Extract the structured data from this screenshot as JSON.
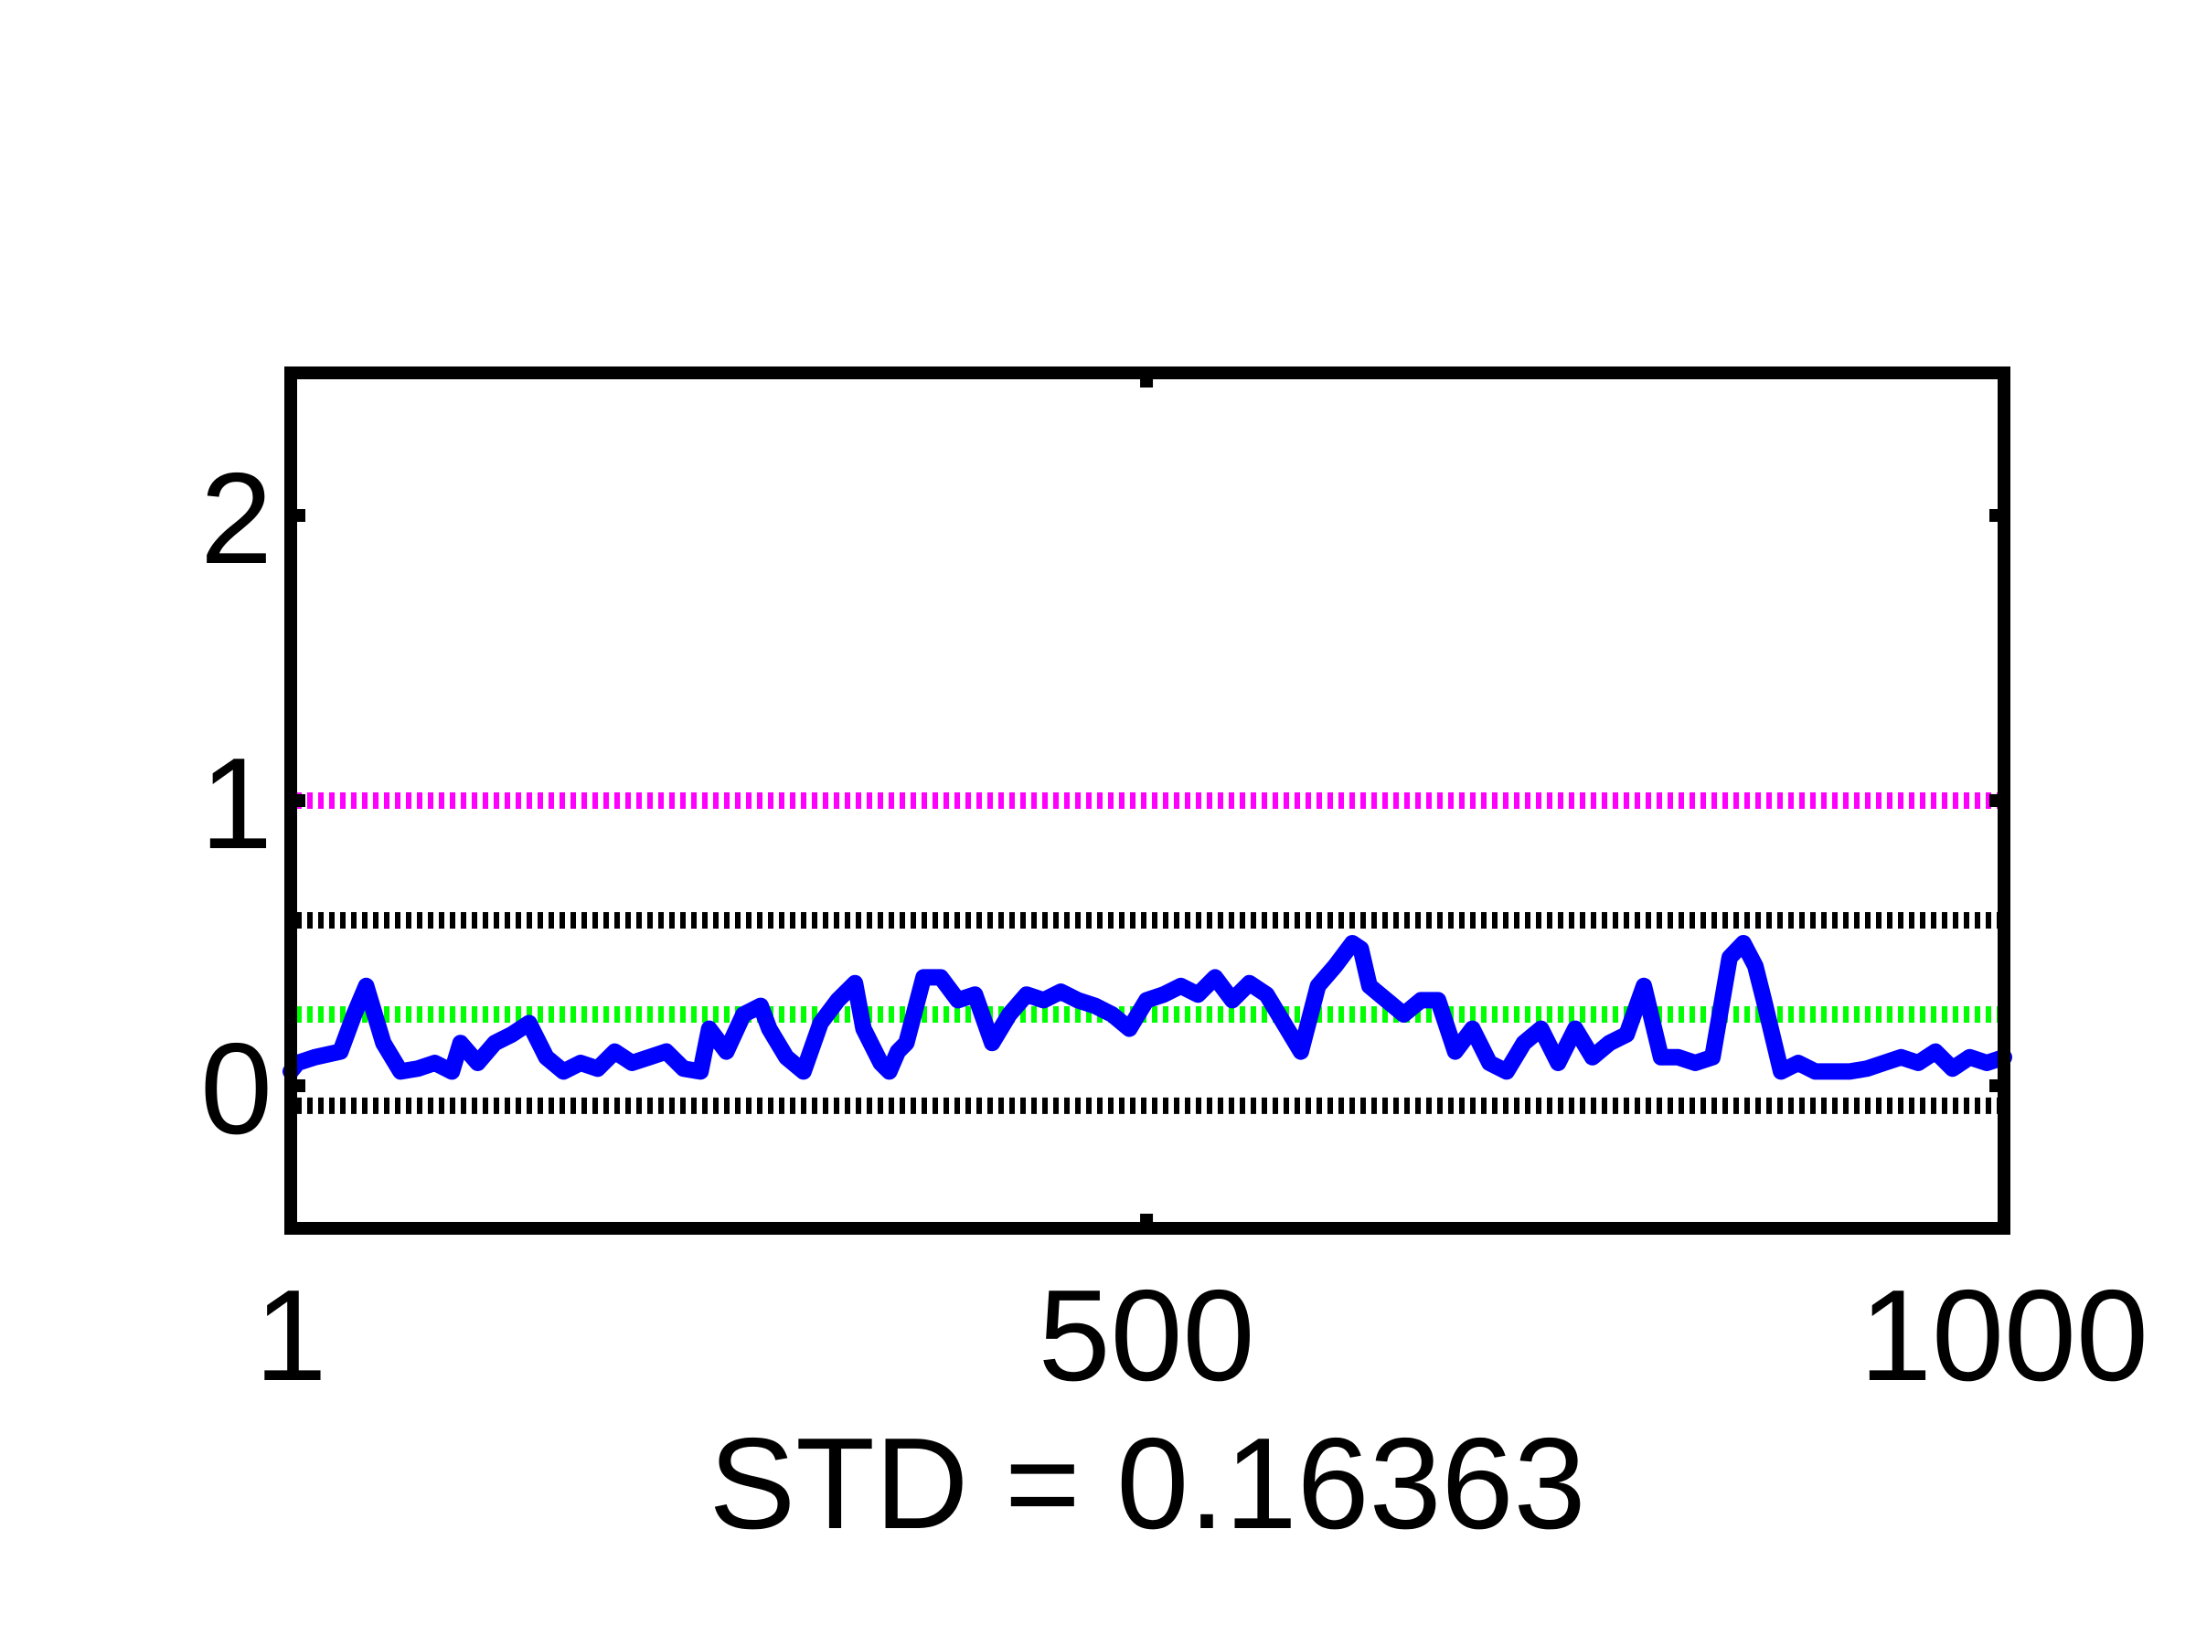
{
  "chart_data": {
    "type": "line",
    "title": "",
    "xlabel": "STD = 0.16363",
    "ylabel": "",
    "xlim": [
      1,
      1000
    ],
    "ylim": [
      -0.5,
      2.5
    ],
    "xticks": [
      1,
      500,
      1000
    ],
    "xtick_labels": [
      "1",
      "500",
      "1000"
    ],
    "yticks": [
      0,
      1,
      2
    ],
    "ytick_labels": [
      "0",
      "1",
      "2"
    ],
    "grid": false,
    "legend": "none",
    "reference_lines": [
      {
        "y": 1.0,
        "color": "#ff00ff",
        "style": "dotted"
      },
      {
        "y": 0.58,
        "color": "#000000",
        "style": "dotted"
      },
      {
        "y": 0.25,
        "color": "#00ff00",
        "style": "dotted"
      },
      {
        "y": -0.07,
        "color": "#000000",
        "style": "dotted"
      }
    ],
    "series": [
      {
        "color": "#0000ff",
        "x": [
          1,
          5,
          15,
          30,
          38,
          45,
          55,
          65,
          75,
          85,
          95,
          100,
          110,
          120,
          130,
          140,
          150,
          160,
          170,
          180,
          190,
          200,
          210,
          220,
          230,
          240,
          245,
          255,
          265,
          275,
          280,
          290,
          300,
          310,
          320,
          330,
          335,
          345,
          350,
          355,
          360,
          370,
          380,
          390,
          400,
          410,
          420,
          430,
          440,
          450,
          460,
          470,
          480,
          490,
          500,
          510,
          520,
          530,
          540,
          550,
          560,
          570,
          580,
          590,
          600,
          610,
          620,
          625,
          630,
          640,
          650,
          660,
          670,
          680,
          690,
          700,
          710,
          720,
          730,
          740,
          750,
          760,
          770,
          780,
          790,
          800,
          810,
          820,
          830,
          840,
          848,
          855,
          860,
          870,
          880,
          890,
          900,
          910,
          920,
          930,
          940,
          950,
          960,
          970,
          980,
          990,
          1000
        ],
        "y": [
          0.05,
          0.08,
          0.1,
          0.12,
          0.25,
          0.35,
          0.15,
          0.05,
          0.06,
          0.08,
          0.05,
          0.15,
          0.08,
          0.15,
          0.18,
          0.22,
          0.1,
          0.05,
          0.08,
          0.06,
          0.12,
          0.08,
          0.1,
          0.12,
          0.06,
          0.05,
          0.2,
          0.12,
          0.25,
          0.28,
          0.2,
          0.1,
          0.05,
          0.22,
          0.3,
          0.36,
          0.2,
          0.08,
          0.05,
          0.12,
          0.15,
          0.38,
          0.38,
          0.3,
          0.32,
          0.15,
          0.25,
          0.32,
          0.3,
          0.33,
          0.3,
          0.28,
          0.25,
          0.2,
          0.3,
          0.32,
          0.35,
          0.32,
          0.38,
          0.3,
          0.36,
          0.32,
          0.22,
          0.12,
          0.35,
          0.42,
          0.5,
          0.48,
          0.35,
          0.3,
          0.25,
          0.3,
          0.3,
          0.12,
          0.2,
          0.08,
          0.05,
          0.15,
          0.2,
          0.08,
          0.2,
          0.1,
          0.15,
          0.18,
          0.35,
          0.1,
          0.1,
          0.08,
          0.1,
          0.45,
          0.5,
          0.42,
          0.3,
          0.05,
          0.08,
          0.05,
          0.05,
          0.05,
          0.06,
          0.08,
          0.1,
          0.08,
          0.12,
          0.06,
          0.1,
          0.08,
          0.1
        ]
      }
    ]
  }
}
